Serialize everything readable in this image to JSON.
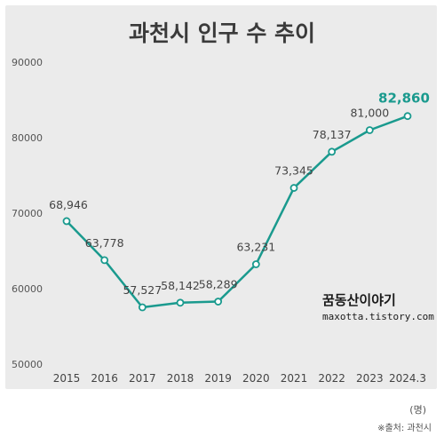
{
  "chart_data": {
    "type": "line",
    "title": "과천시 인구 수 추이",
    "categories": [
      "2015",
      "2016",
      "2017",
      "2018",
      "2019",
      "2020",
      "2021",
      "2022",
      "2023",
      "2024.3"
    ],
    "values": [
      68946,
      63778,
      57527,
      58142,
      58289,
      63231,
      73345,
      78137,
      81000,
      82860
    ],
    "data_labels": [
      "68,946",
      "63,778",
      "57,527",
      "58,142",
      "58,289",
      "63,231",
      "73,345",
      "78,137",
      "81,000",
      "82,860"
    ],
    "yticks": [
      50000,
      60000,
      70000,
      80000,
      90000
    ],
    "ytick_labels": [
      "50000",
      "60000",
      "70000",
      "80000",
      "90000"
    ],
    "ylim": [
      50000,
      90000
    ],
    "unit": "(명)",
    "source": "※출처: 과천시",
    "grid": false,
    "line_color": "#1a9a8e",
    "highlight_color": "#1a9a8e"
  },
  "watermark": {
    "title": "꿈동산이야기",
    "url": "maxotta.tistory.com"
  }
}
